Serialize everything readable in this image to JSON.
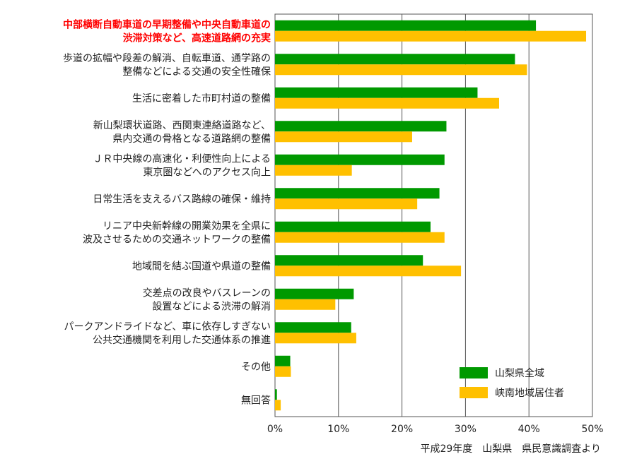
{
  "chart_data": {
    "type": "bar",
    "orientation": "horizontal",
    "categories": [
      [
        "中部横断自動車道の早期整備や中央自動車道の",
        "渋滞対策など、高速道路網の充実"
      ],
      [
        "歩道の拡幅や段差の解消、自転車道、通学路の",
        "整備などによる交通の安全性確保"
      ],
      [
        "生活に密着した市町村道の整備"
      ],
      [
        "新山梨環状道路、西関東連絡道路など、",
        "県内交通の骨格となる道路網の整備"
      ],
      [
        "ＪＲ中央線の高速化・利便性向上による",
        "東京圏などへのアクセス向上"
      ],
      [
        "日常生活を支えるバス路線の確保・維持"
      ],
      [
        "リニア中央新幹線の開業効果を全県に",
        "波及させるための交通ネットワークの整備"
      ],
      [
        "地域間を結ぶ国道や県道の整備"
      ],
      [
        "交差点の改良やバスレーンの",
        "設置などによる渋滞の解消"
      ],
      [
        "パークアンドライドなど、車に依存しすぎない",
        "公共交通機関を利用した交通体系の推進"
      ],
      [
        "その他"
      ],
      [
        "無回答"
      ]
    ],
    "highlight_index": 0,
    "highlight_color": "#ff0000",
    "series": [
      {
        "name": "山梨県全域",
        "color": "#009900",
        "values": [
          41.1,
          37.8,
          31.9,
          27.0,
          26.7,
          25.9,
          24.5,
          23.3,
          12.4,
          12.0,
          2.4,
          0.3
        ]
      },
      {
        "name": "峡南地域居住者",
        "color": "#ffc000",
        "values": [
          49.0,
          39.7,
          35.3,
          21.6,
          12.1,
          22.4,
          26.7,
          29.3,
          9.5,
          12.8,
          2.5,
          0.9
        ]
      }
    ],
    "xlim": [
      0,
      50
    ],
    "xticks": [
      "0%",
      "10%",
      "20%",
      "30%",
      "40%",
      "50%"
    ],
    "grid": true,
    "legend_position": "bottom-right",
    "source": "平成29年度　山梨県　県民意識調査より"
  }
}
